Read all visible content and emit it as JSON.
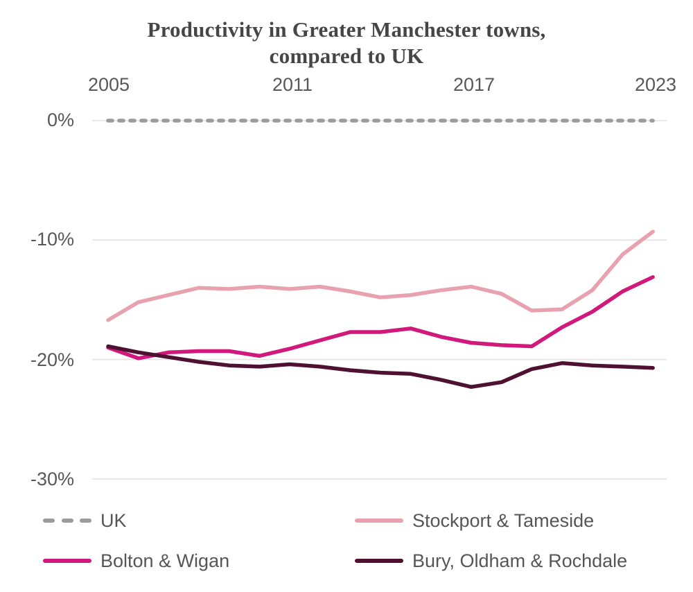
{
  "title": {
    "line1": "Productivity in Greater Manchester towns,",
    "line2": "compared to UK"
  },
  "x_axis": {
    "ticks": [
      "2005",
      "2011",
      "2017",
      "2023"
    ]
  },
  "y_axis": {
    "ticks": [
      "0%",
      "-10%",
      "-20%",
      "-30%"
    ]
  },
  "legend": [
    {
      "label": "UK",
      "color": "#9c9c9c",
      "style": "dashed"
    },
    {
      "label": "Stockport & Tameside",
      "color": "#e8a2af",
      "style": "solid"
    },
    {
      "label": "Bolton & Wigan",
      "color": "#d1187b",
      "style": "solid"
    },
    {
      "label": "Bury, Oldham & Rochdale",
      "color": "#4e1131",
      "style": "solid"
    }
  ],
  "chart_data": {
    "type": "line",
    "title": "Productivity in Greater Manchester towns, compared to UK",
    "x": [
      2005,
      2006,
      2007,
      2008,
      2009,
      2010,
      2011,
      2012,
      2013,
      2014,
      2015,
      2016,
      2017,
      2018,
      2019,
      2020,
      2021,
      2022,
      2023
    ],
    "x_tick_labels": [
      "2005",
      "2011",
      "2017",
      "2023"
    ],
    "xlabel": "",
    "ylabel": "",
    "unit": "%",
    "ylim": [
      -33,
      2
    ],
    "y_ticks": [
      0,
      -10,
      -20,
      -30
    ],
    "grid": "horizontal",
    "legend_position": "bottom",
    "series": [
      {
        "name": "UK",
        "color": "#9c9c9c",
        "dashed": true,
        "values": [
          0,
          0,
          0,
          0,
          0,
          0,
          0,
          0,
          0,
          0,
          0,
          0,
          0,
          0,
          0,
          0,
          0,
          0,
          0
        ]
      },
      {
        "name": "Stockport & Tameside",
        "color": "#e8a2af",
        "dashed": false,
        "values": [
          -16.7,
          -15.2,
          -14.6,
          -14.0,
          -14.1,
          -13.9,
          -14.1,
          -13.9,
          -14.3,
          -14.8,
          -14.6,
          -14.2,
          -13.9,
          -14.5,
          -15.9,
          -15.8,
          -14.2,
          -11.2,
          -9.3
        ]
      },
      {
        "name": "Bolton & Wigan",
        "color": "#d1187b",
        "dashed": false,
        "values": [
          -19.0,
          -19.9,
          -19.4,
          -19.3,
          -19.3,
          -19.7,
          -19.1,
          -18.4,
          -17.7,
          -17.7,
          -17.4,
          -18.1,
          -18.6,
          -18.8,
          -18.9,
          -17.3,
          -16.0,
          -14.3,
          -13.1
        ]
      },
      {
        "name": "Bury, Oldham & Rochdale",
        "color": "#4e1131",
        "dashed": false,
        "values": [
          -18.9,
          -19.4,
          -19.8,
          -20.2,
          -20.5,
          -20.6,
          -20.4,
          -20.6,
          -20.9,
          -21.1,
          -21.2,
          -21.7,
          -22.3,
          -21.9,
          -20.8,
          -20.3,
          -20.5,
          -20.6,
          -20.7
        ]
      }
    ]
  }
}
